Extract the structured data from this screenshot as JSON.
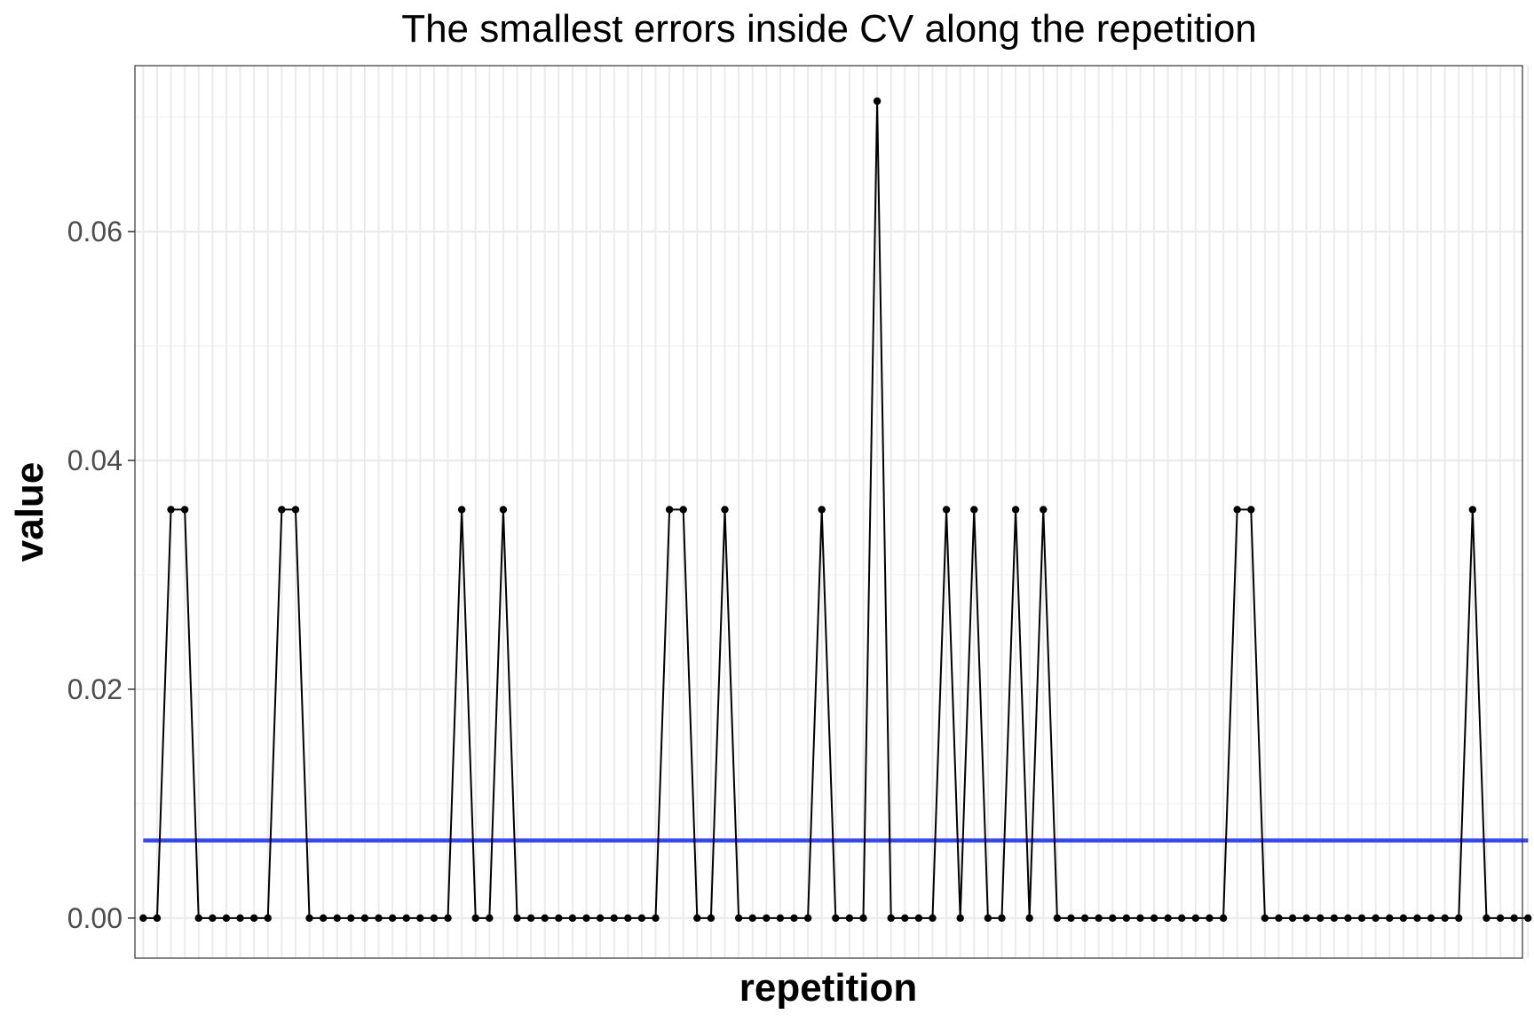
{
  "chart_data": {
    "type": "line",
    "title": "The smallest errors inside CV along the repetition",
    "xlabel": "repetition",
    "ylabel": "value",
    "x_tick_labels_shown": false,
    "ylim": [
      -0.0035,
      0.0745
    ],
    "xlim": [
      0.4,
      100.6
    ],
    "y_ticks": [
      0.0,
      0.02,
      0.04,
      0.06
    ],
    "y_tick_labels": [
      "0.00",
      "0.02",
      "0.04",
      "0.06"
    ],
    "grid": true,
    "legend": "none",
    "colors": {
      "series": "#000000",
      "mean_line": "#3344ff",
      "grid": "#ebebeb",
      "panel_border": "#333333"
    },
    "series": [
      {
        "values": [
          0,
          0,
          0.0357,
          0.0357,
          0,
          0,
          0,
          0,
          0,
          0,
          0.0357,
          0.0357,
          0,
          0,
          0,
          0,
          0,
          0,
          0,
          0,
          0,
          0,
          0,
          0.0357,
          0,
          0,
          0.0357,
          0,
          0,
          0,
          0,
          0,
          0,
          0,
          0,
          0,
          0,
          0,
          0.0357,
          0.0357,
          0,
          0,
          0.0357,
          0,
          0,
          0,
          0,
          0,
          0,
          0.0357,
          0,
          0,
          0,
          0.0714,
          0,
          0,
          0,
          0,
          0.0357,
          0,
          0.0357,
          0,
          0,
          0.0357,
          0,
          0.0357,
          0,
          0,
          0,
          0,
          0,
          0,
          0,
          0,
          0,
          0,
          0,
          0,
          0,
          0.0357,
          0.0357,
          0,
          0,
          0,
          0,
          0,
          0,
          0,
          0,
          0,
          0,
          0,
          0,
          0,
          0,
          0,
          0.0357,
          0,
          0,
          0,
          0
        ]
      }
    ],
    "mean_line": 0.00678
  }
}
